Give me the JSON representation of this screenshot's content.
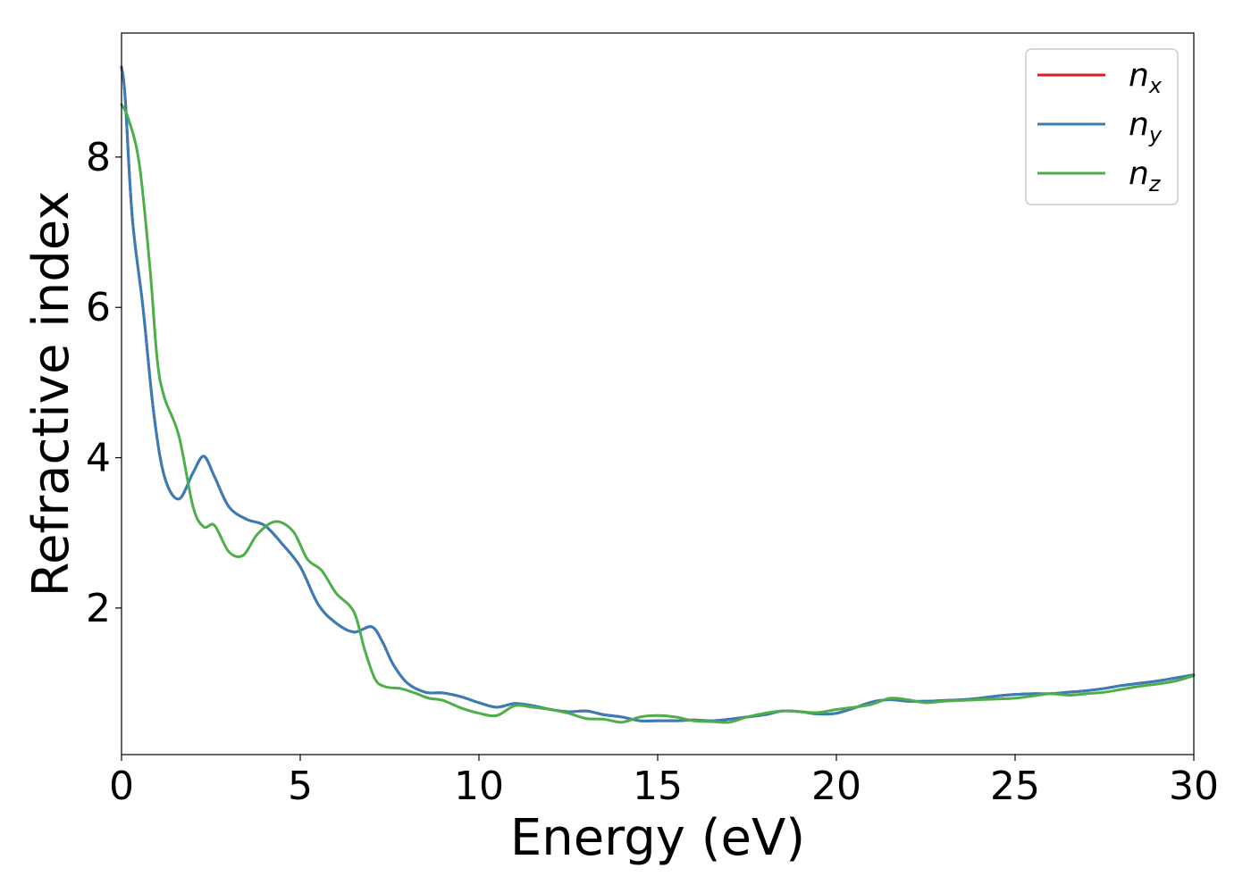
{
  "chart_data": {
    "type": "line",
    "title": "",
    "xlabel": "Energy (eV)",
    "ylabel": "Refractive index",
    "xlim": [
      0,
      30
    ],
    "ylim": [
      0.05,
      9.65
    ],
    "xticks": [
      0,
      5,
      10,
      15,
      20,
      25,
      30
    ],
    "yticks": [
      2,
      4,
      6,
      8
    ],
    "grid": false,
    "legend_position": "top-right",
    "series": [
      {
        "name": "n",
        "subscript": "x",
        "color": "#e41a1c",
        "x": [
          0,
          0.1,
          0.3,
          0.6,
          0.9,
          1.2,
          1.6,
          2.0,
          2.3,
          2.6,
          3.0,
          3.5,
          4.0,
          4.5,
          5.0,
          5.5,
          6.0,
          6.5,
          7.0,
          7.3,
          7.6,
          8.0,
          8.5,
          9.0,
          9.5,
          10.0,
          10.5,
          11.0,
          11.5,
          12.0,
          12.5,
          13.0,
          13.5,
          14.0,
          14.5,
          15.0,
          15.5,
          16.0,
          16.5,
          17.0,
          17.5,
          18.0,
          18.5,
          19.0,
          19.5,
          20.0,
          20.5,
          21.0,
          21.5,
          22.0,
          22.5,
          23.0,
          23.5,
          24.0,
          24.5,
          25.0,
          25.5,
          26.0,
          26.5,
          27.0,
          27.5,
          28.0,
          28.5,
          29.0,
          29.5,
          30.0
        ],
        "y": [
          9.2,
          8.8,
          7.2,
          6.0,
          4.6,
          3.75,
          3.45,
          3.8,
          4.02,
          3.75,
          3.35,
          3.18,
          3.1,
          2.85,
          2.55,
          2.05,
          1.8,
          1.68,
          1.75,
          1.55,
          1.25,
          1.0,
          0.88,
          0.87,
          0.82,
          0.74,
          0.68,
          0.73,
          0.7,
          0.65,
          0.62,
          0.63,
          0.58,
          0.55,
          0.5,
          0.5,
          0.5,
          0.51,
          0.5,
          0.52,
          0.55,
          0.58,
          0.63,
          0.62,
          0.59,
          0.6,
          0.67,
          0.75,
          0.78,
          0.76,
          0.76,
          0.77,
          0.78,
          0.8,
          0.83,
          0.85,
          0.86,
          0.86,
          0.88,
          0.9,
          0.93,
          0.97,
          1.0,
          1.03,
          1.07,
          1.11
        ]
      },
      {
        "name": "n",
        "subscript": "y",
        "color": "#377eb8",
        "x": [
          0,
          0.1,
          0.3,
          0.6,
          0.9,
          1.2,
          1.6,
          2.0,
          2.3,
          2.6,
          3.0,
          3.5,
          4.0,
          4.5,
          5.0,
          5.5,
          6.0,
          6.5,
          7.0,
          7.3,
          7.6,
          8.0,
          8.5,
          9.0,
          9.5,
          10.0,
          10.5,
          11.0,
          11.5,
          12.0,
          12.5,
          13.0,
          13.5,
          14.0,
          14.5,
          15.0,
          15.5,
          16.0,
          16.5,
          17.0,
          17.5,
          18.0,
          18.5,
          19.0,
          19.5,
          20.0,
          20.5,
          21.0,
          21.5,
          22.0,
          22.5,
          23.0,
          23.5,
          24.0,
          24.5,
          25.0,
          25.5,
          26.0,
          26.5,
          27.0,
          27.5,
          28.0,
          28.5,
          29.0,
          29.5,
          30.0
        ],
        "y": [
          9.2,
          8.8,
          7.2,
          6.0,
          4.6,
          3.75,
          3.45,
          3.8,
          4.02,
          3.75,
          3.35,
          3.18,
          3.1,
          2.85,
          2.55,
          2.05,
          1.8,
          1.68,
          1.75,
          1.55,
          1.25,
          1.0,
          0.88,
          0.87,
          0.82,
          0.74,
          0.68,
          0.73,
          0.7,
          0.65,
          0.62,
          0.63,
          0.58,
          0.55,
          0.5,
          0.5,
          0.5,
          0.51,
          0.5,
          0.52,
          0.55,
          0.58,
          0.63,
          0.62,
          0.59,
          0.6,
          0.67,
          0.75,
          0.78,
          0.76,
          0.76,
          0.77,
          0.78,
          0.8,
          0.83,
          0.85,
          0.86,
          0.86,
          0.88,
          0.9,
          0.93,
          0.97,
          1.0,
          1.03,
          1.07,
          1.11
        ]
      },
      {
        "name": "n",
        "subscript": "z",
        "color": "#4daf4a",
        "x": [
          0,
          0.2,
          0.5,
          0.8,
          1.0,
          1.2,
          1.6,
          2.0,
          2.3,
          2.6,
          3.0,
          3.4,
          3.8,
          4.3,
          4.8,
          5.2,
          5.6,
          6.0,
          6.5,
          6.8,
          7.1,
          7.4,
          7.8,
          8.2,
          8.6,
          9.0,
          9.5,
          10.0,
          10.5,
          11.0,
          11.5,
          12.0,
          12.5,
          13.0,
          13.5,
          14.0,
          14.5,
          15.0,
          15.5,
          16.0,
          16.5,
          17.0,
          17.5,
          18.0,
          18.5,
          19.0,
          19.5,
          20.0,
          20.5,
          21.0,
          21.5,
          22.0,
          22.5,
          23.0,
          23.5,
          24.0,
          24.5,
          25.0,
          25.5,
          26.0,
          26.5,
          27.0,
          27.5,
          28.0,
          28.5,
          29.0,
          29.5,
          30.0
        ],
        "y": [
          8.7,
          8.5,
          7.9,
          6.5,
          5.3,
          4.8,
          4.3,
          3.35,
          3.08,
          3.1,
          2.75,
          2.7,
          2.98,
          3.15,
          3.02,
          2.65,
          2.5,
          2.2,
          1.95,
          1.45,
          1.05,
          0.95,
          0.93,
          0.87,
          0.8,
          0.77,
          0.67,
          0.6,
          0.57,
          0.7,
          0.68,
          0.65,
          0.6,
          0.53,
          0.52,
          0.48,
          0.55,
          0.57,
          0.55,
          0.5,
          0.49,
          0.48,
          0.55,
          0.6,
          0.63,
          0.62,
          0.61,
          0.65,
          0.68,
          0.72,
          0.8,
          0.78,
          0.74,
          0.76,
          0.77,
          0.78,
          0.79,
          0.8,
          0.83,
          0.86,
          0.84,
          0.86,
          0.88,
          0.92,
          0.96,
          0.99,
          1.03,
          1.1
        ]
      }
    ]
  }
}
